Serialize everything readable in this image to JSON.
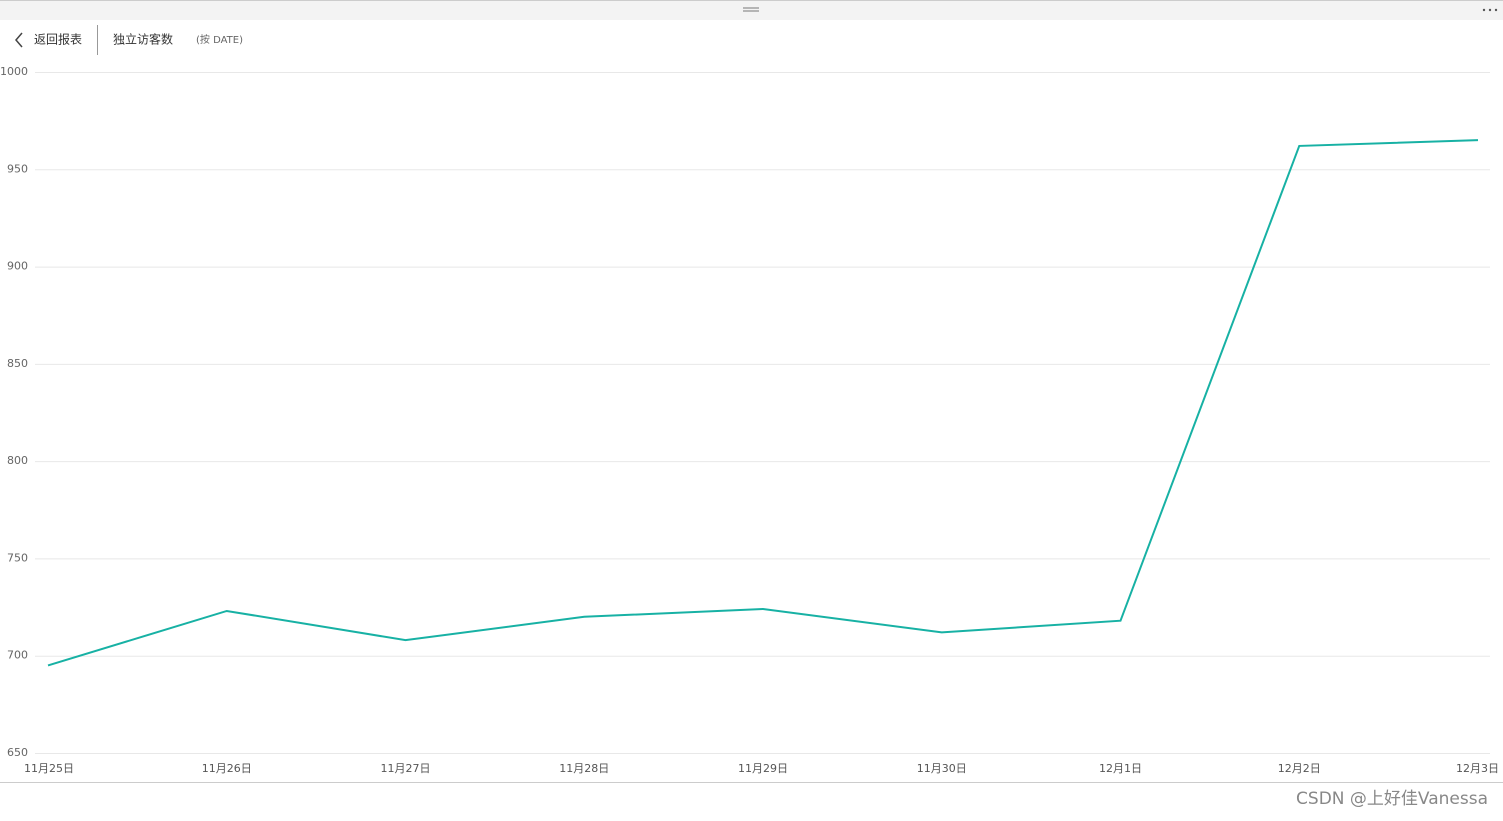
{
  "header": {
    "back": "返回报表",
    "title": "独立访客数",
    "subtitle": "(按 DATE)"
  },
  "watermark": "CSDN @上好佳Vanessa",
  "chart_data": {
    "type": "line",
    "categories": [
      "11月25日",
      "11月26日",
      "11月27日",
      "11月28日",
      "11月29日",
      "11月30日",
      "12月1日",
      "12月2日",
      "12月3日"
    ],
    "series": [
      {
        "name": "独立访客数",
        "color": "#17b1a4",
        "values": [
          695,
          723,
          708,
          720,
          724,
          712,
          718,
          962,
          965
        ]
      }
    ],
    "ylim": [
      650,
      1000
    ],
    "yticks": [
      650,
      700,
      750,
      800,
      850,
      900,
      950,
      1000
    ],
    "grid": true
  }
}
